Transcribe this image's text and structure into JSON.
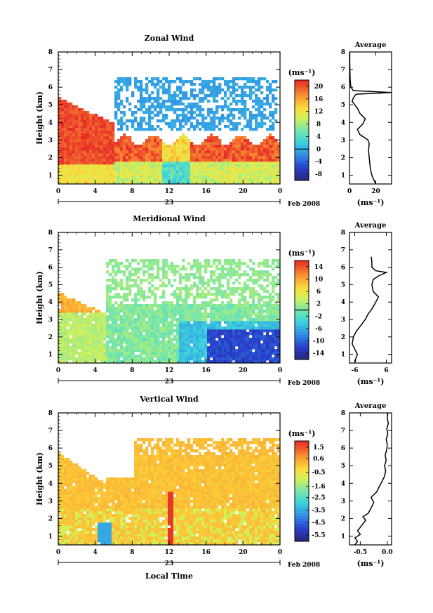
{
  "chart_data": [
    {
      "type": "heatmap",
      "title": "Zonal Wind",
      "xlabel": "",
      "ylabel": "Height (km)",
      "xlim": [
        0,
        24
      ],
      "ylim": [
        0.5,
        8
      ],
      "x_ticks": [
        "0",
        "4",
        "8",
        "12",
        "16",
        "20",
        "0"
      ],
      "y_ticks": [
        "1",
        "2",
        "3",
        "4",
        "5",
        "6",
        "7",
        "8"
      ],
      "date_label": "23",
      "month_label": "Feb 2008",
      "colorbar": {
        "unit": "(ms⁻¹)",
        "ticks": [
          "20",
          "16",
          "12",
          "8",
          "4",
          "0",
          "-4",
          "-8"
        ],
        "range": [
          -10,
          22
        ],
        "zero_line": 0
      },
      "profile": {
        "title": "Average",
        "xlabel": "(ms⁻¹)",
        "x_ticks": [
          "0",
          "20"
        ],
        "xlim": [
          0,
          32
        ],
        "heights": [
          0.5,
          0.8,
          1.0,
          1.3,
          1.6,
          2.0,
          2.4,
          2.8,
          3.0,
          3.3,
          3.6,
          3.9,
          4.2,
          4.5,
          4.8,
          5.0,
          5.2,
          5.4,
          5.6,
          5.7,
          5.8,
          6.0,
          6.5,
          7.0,
          7.5,
          8.0
        ],
        "values": [
          20,
          18,
          17,
          16,
          15.5,
          15,
          14.5,
          15,
          14,
          8,
          6,
          10,
          12,
          8,
          6,
          4,
          2,
          3,
          5,
          32,
          3,
          1,
          0.5,
          0.3,
          0.2,
          0.2
        ]
      }
    },
    {
      "type": "heatmap",
      "title": "Meridional Wind",
      "xlabel": "",
      "ylabel": "Height (km)",
      "xlim": [
        0,
        24
      ],
      "ylim": [
        0.5,
        8
      ],
      "x_ticks": [
        "0",
        "4",
        "8",
        "12",
        "16",
        "20",
        "0"
      ],
      "y_ticks": [
        "1",
        "2",
        "3",
        "4",
        "5",
        "6",
        "7",
        "8"
      ],
      "date_label": "23",
      "month_label": "Feb 2008",
      "colorbar": {
        "unit": "(ms⁻¹)",
        "ticks": [
          "14",
          "10",
          "6",
          "2",
          "-2",
          "-6",
          "-10",
          "-14"
        ],
        "range": [
          -16,
          16
        ],
        "zero_line": 0
      },
      "profile": {
        "title": "Average",
        "xlabel": "(ms⁻¹)",
        "x_ticks": [
          "-6",
          "6"
        ],
        "xlim": [
          -8,
          8
        ],
        "heights": [
          0.5,
          0.8,
          1.0,
          1.3,
          1.6,
          2.0,
          2.3,
          2.6,
          3.0,
          3.3,
          3.6,
          4.0,
          4.3,
          4.6,
          5.0,
          5.3,
          5.5,
          5.7,
          5.8,
          6.0,
          6.3,
          6.6
        ],
        "values": [
          -6,
          -5.5,
          -5,
          -6,
          -7,
          -6.5,
          -5.5,
          -4,
          -2,
          -1,
          0.5,
          2,
          3,
          1,
          0.5,
          1,
          3,
          6,
          2,
          0.5,
          0.5,
          0.3
        ]
      }
    },
    {
      "type": "heatmap",
      "title": "Vertical Wind",
      "xlabel": "Local Time",
      "ylabel": "Height (km)",
      "xlim": [
        0,
        24
      ],
      "ylim": [
        0.5,
        8
      ],
      "x_ticks": [
        "0",
        "4",
        "8",
        "12",
        "16",
        "20",
        "0"
      ],
      "y_ticks": [
        "1",
        "2",
        "3",
        "4",
        "5",
        "6",
        "7",
        "8"
      ],
      "date_label": "23",
      "month_label": "Feb 2008",
      "colorbar": {
        "unit": "(ms⁻¹)",
        "ticks": [
          "1.5",
          "0.6",
          "-0.5",
          "-1.6",
          "-2.5",
          "-3.5",
          "-4.5",
          "-5.5"
        ],
        "range": [
          -6,
          2
        ],
        "zero_line": null
      },
      "profile": {
        "title": "Average",
        "xlabel": "(ms⁻¹)",
        "x_ticks": [
          "-0.5",
          "0.0"
        ],
        "xlim": [
          -0.7,
          0.08
        ],
        "heights": [
          0.5,
          0.7,
          0.9,
          1.1,
          1.3,
          1.5,
          1.7,
          1.9,
          2.1,
          2.3,
          2.6,
          2.9,
          3.2,
          3.5,
          3.8,
          4.1,
          4.4,
          4.7,
          5.0,
          5.3,
          5.6,
          5.9,
          6.2,
          6.5,
          6.8,
          7.1,
          7.4,
          7.7,
          8.0
        ],
        "values": [
          -0.6,
          -0.55,
          -0.6,
          -0.5,
          -0.55,
          -0.5,
          -0.45,
          -0.4,
          -0.45,
          -0.35,
          -0.3,
          -0.25,
          -0.3,
          -0.2,
          -0.15,
          -0.1,
          -0.05,
          -0.03,
          -0.05,
          -0.02,
          -0.04,
          -0.01,
          0.0,
          -0.02,
          0.01,
          -0.01,
          0.02,
          0.0,
          0.01
        ]
      }
    }
  ]
}
